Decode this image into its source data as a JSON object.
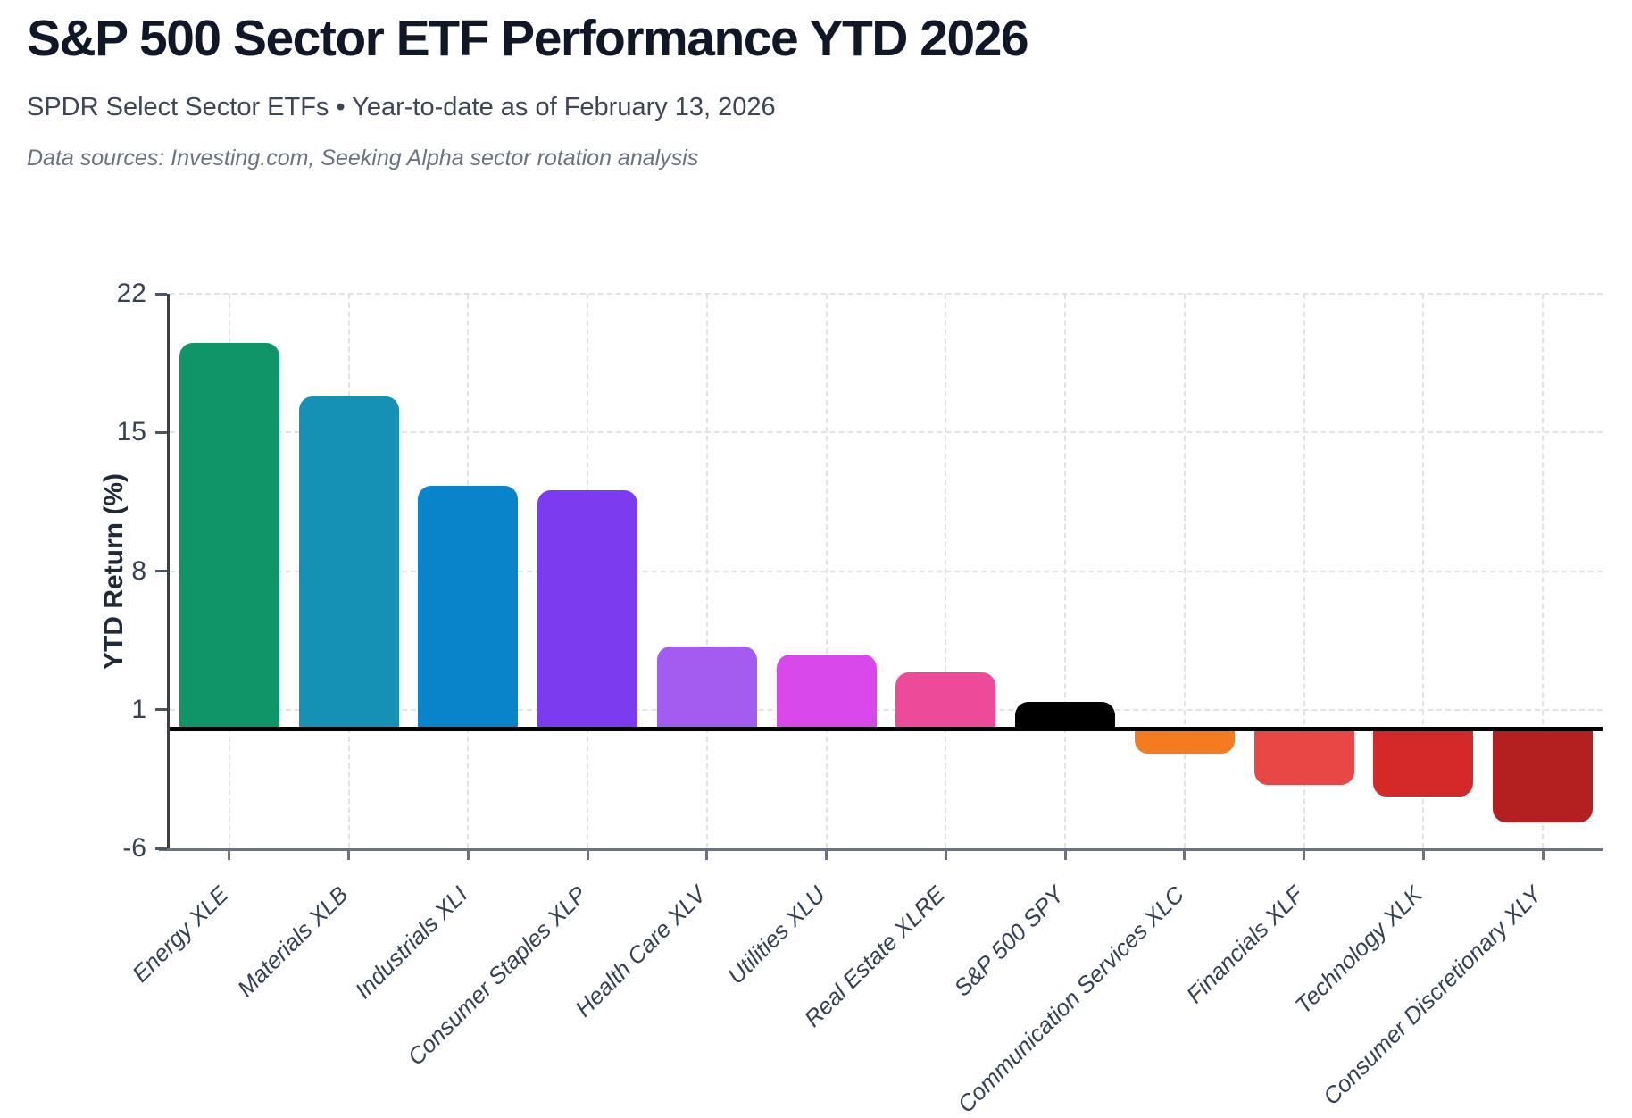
{
  "header": {
    "title": "S&P 500 Sector ETF Performance YTD 2026",
    "subtitle": "SPDR Select Sector ETFs • Year-to-date as of February 13, 2026",
    "data_sources": "Data sources: Investing.com, Seeking Alpha sector rotation analysis"
  },
  "chart_data": {
    "type": "bar",
    "title": "S&P 500 Sector ETF Performance YTD 2026",
    "xlabel": "",
    "ylabel": "YTD Return (%)",
    "categories": [
      "Energy XLE",
      "Materials XLB",
      "Industrials XLI",
      "Consumer Staples XLP",
      "Health Care XLV",
      "Utilities XLU",
      "Real Estate XLRE",
      "S&P 500 SPY",
      "Communication Services XLC",
      "Financials XLF",
      "Technology XLK",
      "Consumer Discretionary XLY"
    ],
    "values": [
      19.5,
      16.8,
      12.3,
      12.1,
      4.2,
      3.8,
      2.9,
      1.4,
      -1.2,
      -2.8,
      -3.4,
      -4.7
    ],
    "colors": [
      "#0f9568",
      "#1591b5",
      "#0884ca",
      "#7c3bee",
      "#a45cf0",
      "#d948ea",
      "#ed4a99",
      "#000000",
      "#f57b20",
      "#e94646",
      "#d32929",
      "#b41f1f"
    ],
    "yticks": [
      22,
      15,
      8,
      1,
      -6
    ],
    "ylim": [
      -6,
      22
    ],
    "grid": true,
    "grid_style": "dashed",
    "zero_line": true,
    "legend": "none",
    "tick_label_style": "italic-rotated-45"
  }
}
